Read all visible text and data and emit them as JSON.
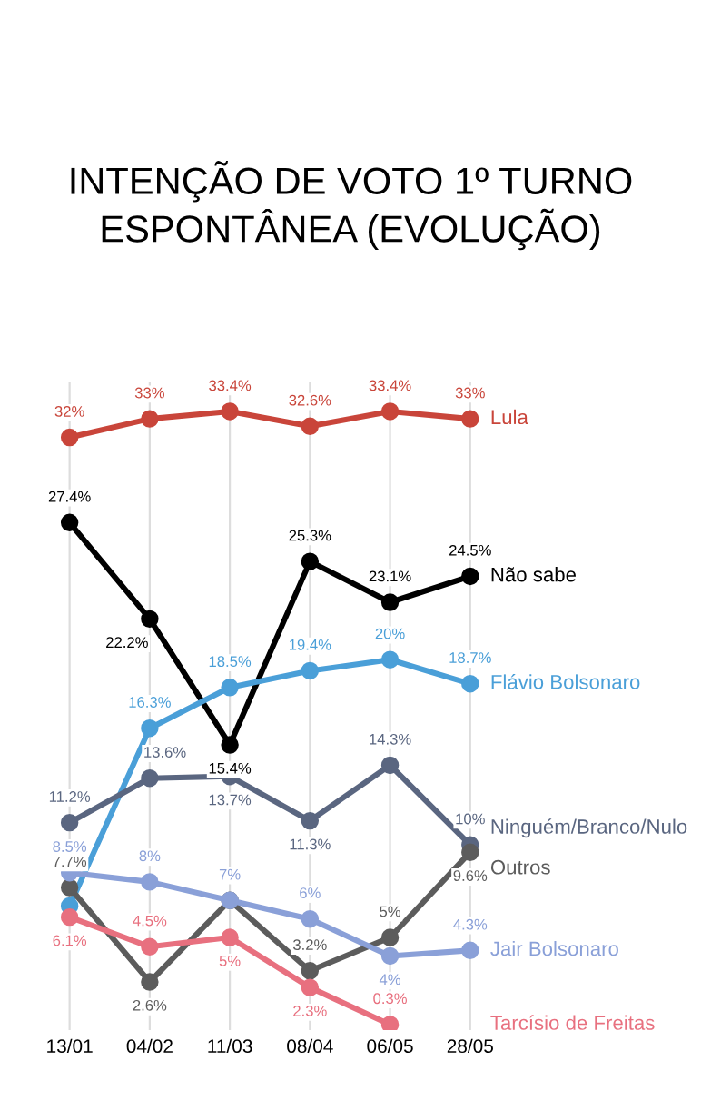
{
  "chart_data": {
    "type": "line",
    "title": "INTENÇÃO DE VOTO 1º TURNO\nESPONTÂNEA (EVOLUÇÃO)",
    "categories": [
      "13/01",
      "04/02",
      "11/03",
      "08/04",
      "06/05",
      "28/05"
    ],
    "ylim": [
      0,
      35
    ],
    "tick_labels": "x",
    "grid": "x",
    "marker": "circle",
    "legend": false,
    "series": [
      {
        "name": "Lula",
        "color": "#c9453a",
        "values": [
          32,
          33,
          33.4,
          32.6,
          33.4,
          33
        ],
        "value_labels": [
          "32%",
          "33%",
          "33.4%",
          "32.6%",
          "33.4%",
          "33%"
        ]
      },
      {
        "name": "Não sabe",
        "color": "#000000",
        "values": [
          27.4,
          22.2,
          15.4,
          25.3,
          23.1,
          24.5
        ],
        "value_labels": [
          "27.4%",
          "22.2%",
          "15.4%",
          "25.3%",
          "23.1%",
          "24.5%"
        ]
      },
      {
        "name": "Flávio Bolsonaro",
        "color": "#4a9fd8",
        "values": [
          6.7,
          16.3,
          18.5,
          19.4,
          20,
          18.7
        ],
        "value_labels": [
          null,
          "16.3%",
          "18.5%",
          "19.4%",
          "20%",
          "18.7%"
        ]
      },
      {
        "name": "Ninguém/Branco/Nulo",
        "color": "#5a6680",
        "values": [
          11.2,
          13.6,
          13.7,
          11.3,
          14.3,
          10
        ],
        "value_labels": [
          "11.2%",
          "13.6%",
          "13.7%",
          "11.3%",
          "14.3%",
          "10%"
        ]
      },
      {
        "name": "Outros",
        "color": "#5c5c5c",
        "values": [
          7.7,
          2.6,
          7,
          3.2,
          5,
          9.6
        ],
        "value_labels": [
          "7.7%",
          "2.6%",
          null,
          "3.2%",
          "5%",
          "9.6%"
        ]
      },
      {
        "name": "Jair Bolsonaro",
        "color": "#8aa0d8",
        "values": [
          8.5,
          8,
          7,
          6,
          4,
          4.3
        ],
        "value_labels": [
          "8.5%",
          "8%",
          "7%",
          "6%",
          "4%",
          "4.3%"
        ]
      },
      {
        "name": "Tarcísio de Freitas",
        "color": "#e8707f",
        "values": [
          6.1,
          4.5,
          5,
          2.3,
          0.3,
          null
        ],
        "value_labels": [
          "6.1%",
          "4.5%",
          "5%",
          "2.3%",
          "0.3%",
          null
        ]
      }
    ]
  }
}
